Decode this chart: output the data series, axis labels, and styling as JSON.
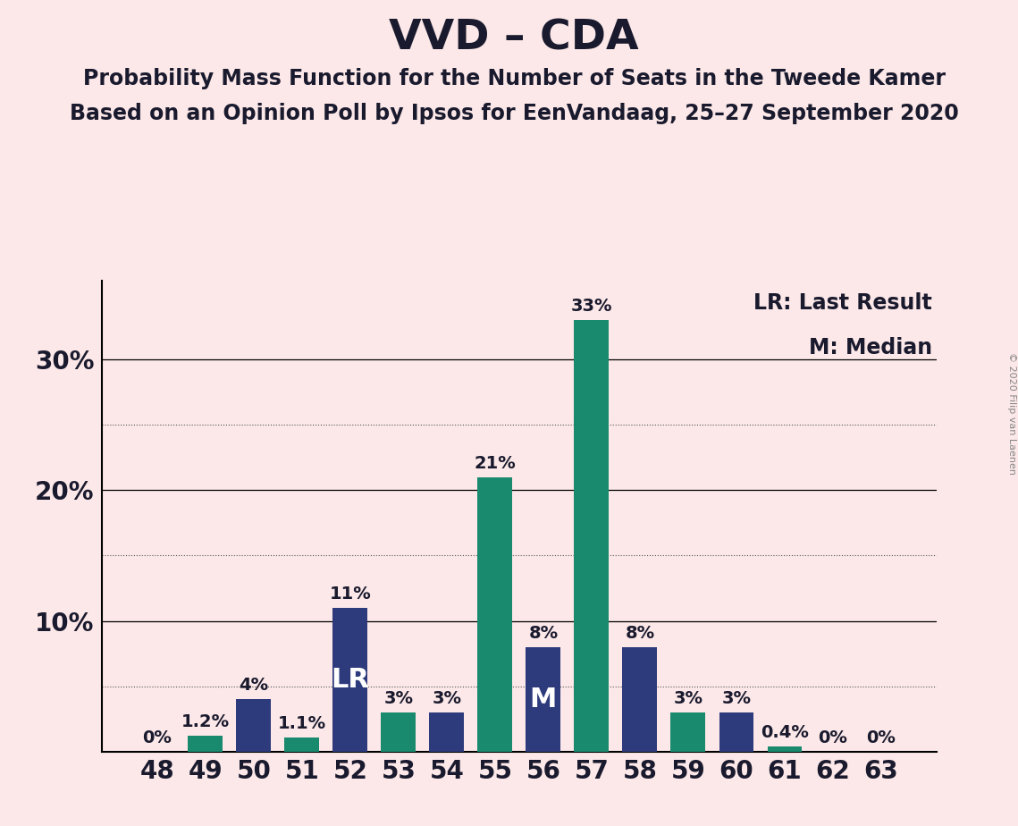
{
  "title": "VVD – CDA",
  "subtitle1": "Probability Mass Function for the Number of Seats in the Tweede Kamer",
  "subtitle2": "Based on an Opinion Poll by Ipsos for EenVandaag, 25–27 September 2020",
  "copyright": "© 2020 Filip van Laenen",
  "legend_lr": "LR: Last Result",
  "legend_m": "M: Median",
  "seats": [
    48,
    49,
    50,
    51,
    52,
    53,
    54,
    55,
    56,
    57,
    58,
    59,
    60,
    61,
    62,
    63
  ],
  "values": [
    0.0,
    1.2,
    4.0,
    1.1,
    11.0,
    3.0,
    3.0,
    21.0,
    8.0,
    33.0,
    8.0,
    3.0,
    3.0,
    0.4,
    0.0,
    0.0
  ],
  "labels": [
    "0%",
    "1.2%",
    "4%",
    "1.1%",
    "11%",
    "3%",
    "3%",
    "21%",
    "8%",
    "33%",
    "8%",
    "3%",
    "3%",
    "0.4%",
    "0%",
    "0%"
  ],
  "colors": [
    "#2d3a7c",
    "#1a8a6e",
    "#2d3a7c",
    "#1a8a6e",
    "#2d3a7c",
    "#1a8a6e",
    "#2d3a7c",
    "#1a8a6e",
    "#2d3a7c",
    "#1a8a6e",
    "#2d3a7c",
    "#1a8a6e",
    "#2d3a7c",
    "#1a8a6e",
    "#2d3a7c",
    "#1a8a6e"
  ],
  "lr_seat": 52,
  "median_seat": 56,
  "background_color": "#fce8e8",
  "major_gridlines": [
    10,
    20,
    30
  ],
  "minor_gridlines": [
    5,
    15,
    25
  ],
  "ylim": [
    0,
    36
  ],
  "title_fontsize": 34,
  "subtitle_fontsize": 17,
  "label_fontsize": 14,
  "tick_fontsize": 20,
  "ytick_fontsize": 20,
  "legend_fontsize": 17,
  "bar_width": 0.72,
  "lr_text": "LR",
  "m_text": "M"
}
